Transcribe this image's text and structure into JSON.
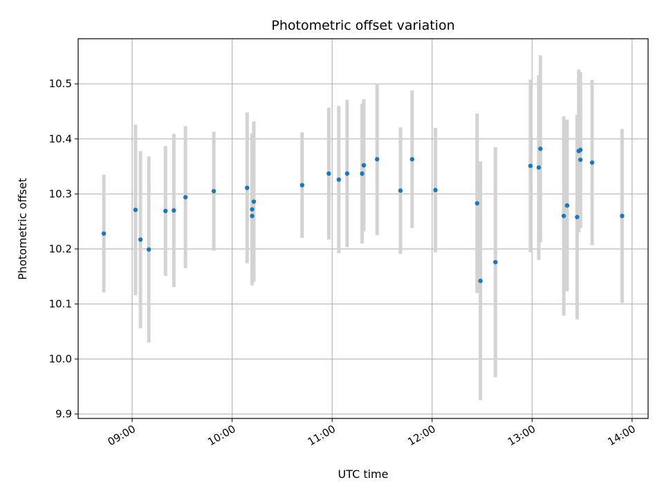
{
  "chart_data": {
    "type": "scatter",
    "title": "Photometric offset variation",
    "xlabel": "UTC time",
    "ylabel": "Photometric offset",
    "x_ticks": [
      "09:00",
      "10:00",
      "11:00",
      "12:00",
      "13:00",
      "14:00"
    ],
    "x_tick_values_hours": [
      9,
      10,
      11,
      12,
      13,
      14
    ],
    "y_ticks": [
      "9.9",
      "10.0",
      "10.1",
      "10.2",
      "10.3",
      "10.4",
      "10.5"
    ],
    "xlim_hours": [
      8.46,
      14.16
    ],
    "ylim": [
      9.892,
      10.582
    ],
    "grid": true,
    "colors": {
      "point": "#1f77b4",
      "errorbar": "#d3d3d3",
      "grid": "#b0b0b0"
    },
    "series": [
      {
        "points": [
          {
            "time": "08:43",
            "y": 10.228,
            "yerr": 0.107
          },
          {
            "time": "09:02",
            "y": 10.271,
            "yerr": 0.155
          },
          {
            "time": "09:05",
            "y": 10.217,
            "yerr": 0.161
          },
          {
            "time": "09:10",
            "y": 10.199,
            "yerr": 0.169
          },
          {
            "time": "09:20",
            "y": 10.269,
            "yerr": 0.118
          },
          {
            "time": "09:25",
            "y": 10.27,
            "yerr": 0.139
          },
          {
            "time": "09:32",
            "y": 10.294,
            "yerr": 0.129
          },
          {
            "time": "09:49",
            "y": 10.305,
            "yerr": 0.108
          },
          {
            "time": "10:09",
            "y": 10.311,
            "yerr": 0.137
          },
          {
            "time": "10:12",
            "y": 10.26,
            "yerr": 0.126
          },
          {
            "time": "10:12",
            "y": 10.272,
            "yerr": 0.138
          },
          {
            "time": "10:13",
            "y": 10.286,
            "yerr": 0.146
          },
          {
            "time": "10:42",
            "y": 10.316,
            "yerr": 0.096
          },
          {
            "time": "10:58",
            "y": 10.337,
            "yerr": 0.12
          },
          {
            "time": "11:04",
            "y": 10.326,
            "yerr": 0.134
          },
          {
            "time": "11:09",
            "y": 10.337,
            "yerr": 0.134
          },
          {
            "time": "11:18",
            "y": 10.337,
            "yerr": 0.127
          },
          {
            "time": "11:19",
            "y": 10.352,
            "yerr": 0.12
          },
          {
            "time": "11:27",
            "y": 10.363,
            "yerr": 0.138
          },
          {
            "time": "11:41",
            "y": 10.306,
            "yerr": 0.115
          },
          {
            "time": "11:48",
            "y": 10.363,
            "yerr": 0.125
          },
          {
            "time": "12:02",
            "y": 10.307,
            "yerr": 0.113
          },
          {
            "time": "12:27",
            "y": 10.283,
            "yerr": 0.163
          },
          {
            "time": "12:29",
            "y": 10.142,
            "yerr": 0.217
          },
          {
            "time": "12:38",
            "y": 10.176,
            "yerr": 0.209
          },
          {
            "time": "12:59",
            "y": 10.351,
            "yerr": 0.157
          },
          {
            "time": "13:04",
            "y": 10.348,
            "yerr": 0.168
          },
          {
            "time": "13:05",
            "y": 10.382,
            "yerr": 0.17
          },
          {
            "time": "13:19",
            "y": 10.26,
            "yerr": 0.181
          },
          {
            "time": "13:21",
            "y": 10.279,
            "yerr": 0.156
          },
          {
            "time": "13:27",
            "y": 10.258,
            "yerr": 0.186
          },
          {
            "time": "13:28",
            "y": 10.378,
            "yerr": 0.148
          },
          {
            "time": "13:29",
            "y": 10.38,
            "yerr": 0.141
          },
          {
            "time": "13:29",
            "y": 10.362,
            "yerr": 0.124
          },
          {
            "time": "13:36",
            "y": 10.357,
            "yerr": 0.15
          },
          {
            "time": "13:54",
            "y": 10.26,
            "yerr": 0.158
          }
        ]
      }
    ]
  }
}
